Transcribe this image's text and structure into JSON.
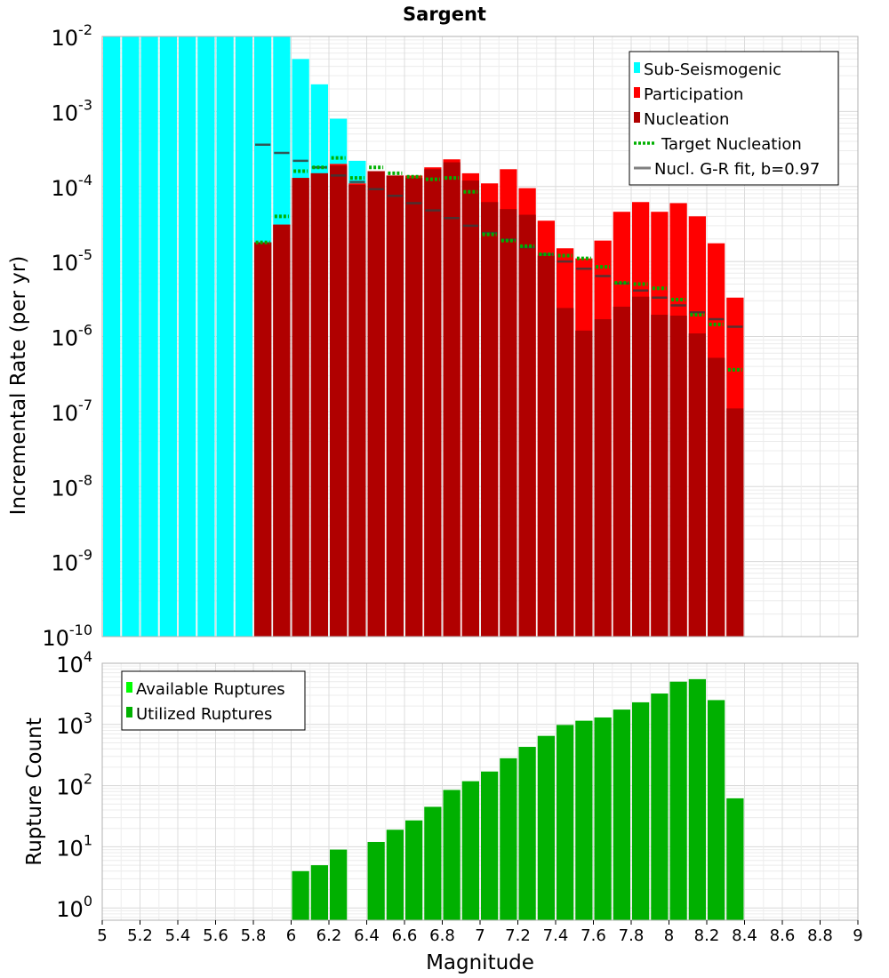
{
  "chart_data": [
    {
      "type": "bar",
      "title": "Sargent",
      "ylabel": "Incremental Rate (per yr)",
      "xlabel": "",
      "xlim": [
        5,
        9
      ],
      "yscale": "log",
      "ylim_exp": [
        -10,
        -2
      ],
      "y_tick_exponents": [
        "-10",
        "-9",
        "-8",
        "-7",
        "-6",
        "-5",
        "-4",
        "-3",
        "-2"
      ],
      "grid": true,
      "legend_position": "top-right",
      "legend": [
        {
          "label": "Sub-Seismogenic",
          "color": "#00ffff",
          "kind": "box"
        },
        {
          "label": "Participation",
          "color": "#ff0000",
          "kind": "box"
        },
        {
          "label": "Nucleation",
          "color": "#b00000",
          "kind": "box"
        },
        {
          "label": "Target Nucleation",
          "color": "#00b000",
          "kind": "dotted"
        },
        {
          "label": "Nucl. G-R fit, b=0.97",
          "color": "#808080",
          "kind": "line"
        }
      ],
      "bin_centers": [
        5.05,
        5.15,
        5.25,
        5.35,
        5.45,
        5.55,
        5.65,
        5.75,
        5.85,
        5.95,
        6.05,
        6.15,
        6.25,
        6.35,
        6.45,
        6.55,
        6.65,
        6.75,
        6.85,
        6.95,
        7.05,
        7.15,
        7.25,
        7.35,
        7.45,
        7.55,
        7.65,
        7.75,
        7.85,
        7.95,
        8.05,
        8.15,
        8.25,
        8.35
      ],
      "series": [
        {
          "name": "Sub-Seismogenic",
          "color": "#00ffff",
          "values": [
            0.01,
            0.01,
            0.01,
            0.01,
            0.01,
            0.01,
            0.01,
            0.01,
            0.01,
            0.01,
            0.005,
            0.0023,
            0.0008,
            0.00022,
            null,
            null,
            null,
            null,
            null,
            null,
            null,
            null,
            null,
            null,
            null,
            null,
            null,
            null,
            null,
            null,
            null,
            null,
            null,
            null
          ]
        },
        {
          "name": "Participation",
          "color": "#ff0000",
          "values": [
            null,
            null,
            null,
            null,
            null,
            null,
            null,
            null,
            1.8e-05,
            3.1e-05,
            0.00013,
            0.00015,
            0.0002,
            0.00011,
            0.00016,
            0.00014,
            0.00014,
            0.00018,
            0.00023,
            0.00015,
            0.00011,
            0.00017,
            9.5e-05,
            3.5e-05,
            1.5e-05,
            1.1e-05,
            1.9e-05,
            4.6e-05,
            6.2e-05,
            4.6e-05,
            6e-05,
            4e-05,
            1.75e-05,
            3.3e-06
          ]
        },
        {
          "name": "Nucleation",
          "color": "#b00000",
          "values": [
            null,
            null,
            null,
            null,
            null,
            null,
            null,
            null,
            1.8e-05,
            3.1e-05,
            0.00013,
            0.00015,
            0.00019,
            0.000105,
            0.00016,
            0.00014,
            0.00013,
            0.00017,
            0.00021,
            0.00012,
            6.2e-05,
            5e-05,
            4.2e-05,
            1.2e-05,
            2.4e-06,
            1.2e-06,
            1.7e-06,
            2.5e-06,
            3.4e-06,
            1.95e-06,
            1.9e-06,
            1.1e-06,
            5.2e-07,
            1.1e-07
          ]
        },
        {
          "name": "Target Nucleation",
          "color": "#00b000",
          "values": [
            null,
            null,
            null,
            null,
            null,
            null,
            null,
            null,
            1.8e-05,
            4e-05,
            0.00016,
            0.00018,
            0.00024,
            0.00013,
            0.00018,
            0.00015,
            0.000135,
            0.000125,
            0.00013,
            8.5e-05,
            2.3e-05,
            1.9e-05,
            1.6e-05,
            1.25e-05,
            1.2e-05,
            1.1e-05,
            8.5e-06,
            5.2e-06,
            5e-06,
            4.4e-06,
            3.1e-06,
            1.95e-06,
            1.45e-06,
            3.6e-07
          ]
        },
        {
          "name": "Nucl. G-R fit, b=0.97",
          "color": "#808080",
          "values": [
            null,
            null,
            null,
            null,
            null,
            null,
            null,
            null,
            0.00036,
            0.00028,
            0.00022,
            0.00018,
            0.00014,
            0.000115,
            9.2e-05,
            7.5e-05,
            6e-05,
            4.8e-05,
            3.8e-05,
            3e-05,
            2.4e-05,
            1.95e-05,
            1.55e-05,
            1.25e-05,
            1e-05,
            8e-06,
            6.4e-06,
            5.1e-06,
            4.1e-06,
            3.3e-06,
            2.6e-06,
            2.1e-06,
            1.7e-06,
            1.35e-06
          ]
        }
      ]
    },
    {
      "type": "bar",
      "title": "",
      "ylabel": "Rupture Count",
      "xlabel": "Magnitude",
      "xlim": [
        5,
        9
      ],
      "x_ticks": [
        "5",
        "5.2",
        "5.4",
        "5.6",
        "5.8",
        "6",
        "6.2",
        "6.4",
        "6.6",
        "6.8",
        "7",
        "7.2",
        "7.4",
        "7.6",
        "7.8",
        "8",
        "8.2",
        "8.4",
        "8.6",
        "8.8",
        "9"
      ],
      "yscale": "log",
      "ylim_exp": [
        -0.2,
        4
      ],
      "y_tick_exponents": [
        "0",
        "1",
        "2",
        "3",
        "4"
      ],
      "grid": true,
      "legend_position": "top-left",
      "legend": [
        {
          "label": "Available Ruptures",
          "color": "#00ff00",
          "kind": "box"
        },
        {
          "label": "Utilized Ruptures",
          "color": "#00b000",
          "kind": "box"
        }
      ],
      "bin_centers": [
        6.05,
        6.15,
        6.25,
        6.45,
        6.55,
        6.65,
        6.75,
        6.85,
        6.95,
        7.05,
        7.15,
        7.25,
        7.35,
        7.45,
        7.55,
        7.65,
        7.75,
        7.85,
        7.95,
        8.05,
        8.15,
        8.25,
        8.35
      ],
      "series": [
        {
          "name": "Utilized Ruptures",
          "color": "#00b000",
          "values": [
            4,
            5,
            9,
            12,
            19,
            27,
            45,
            85,
            118,
            170,
            280,
            430,
            650,
            980,
            1150,
            1300,
            1750,
            2300,
            3200,
            5000,
            5500,
            2500,
            62
          ]
        }
      ]
    }
  ]
}
